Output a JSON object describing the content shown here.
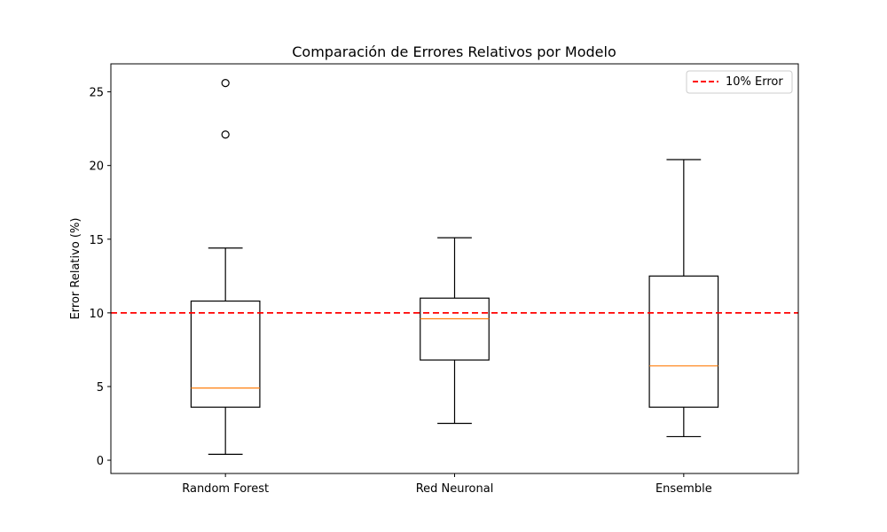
{
  "chart_data": {
    "type": "box",
    "title": "Comparación de Errores Relativos por Modelo",
    "xlabel": "",
    "ylabel": "Error Relativo (%)",
    "ylim": [
      -0.9,
      26.9
    ],
    "yticks": [
      0,
      5,
      10,
      15,
      20,
      25
    ],
    "categories": [
      "Random Forest",
      "Red Neuronal",
      "Ensemble"
    ],
    "boxes": [
      {
        "whisker_low": 0.4,
        "q1": 3.6,
        "median": 4.9,
        "q3": 10.8,
        "whisker_high": 14.4,
        "outliers": [
          22.1,
          25.6
        ]
      },
      {
        "whisker_low": 2.5,
        "q1": 6.8,
        "median": 9.6,
        "q3": 11.0,
        "whisker_high": 15.1,
        "outliers": []
      },
      {
        "whisker_low": 1.6,
        "q1": 3.6,
        "median": 6.4,
        "q3": 12.5,
        "whisker_high": 20.4,
        "outliers": []
      }
    ],
    "reference_line": {
      "value": 10,
      "label": "10% Error",
      "color": "#ff0000",
      "style": "dashed"
    },
    "legend": {
      "position": "upper-right",
      "entries": [
        "10% Error"
      ]
    },
    "colors": {
      "box": "#000000",
      "median": "#ff7f0e",
      "reference": "#ff0000"
    },
    "grid": false
  }
}
